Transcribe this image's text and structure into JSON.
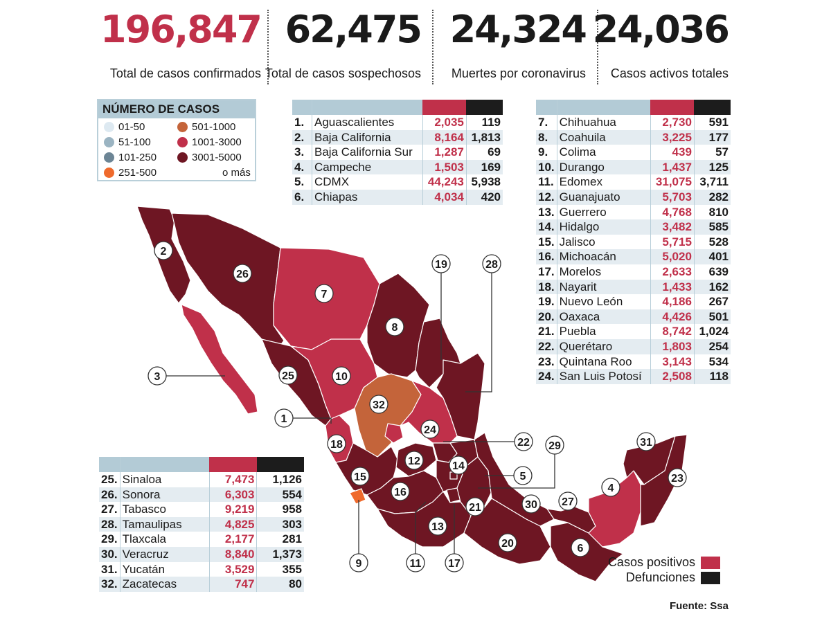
{
  "stats": [
    {
      "value": "196,847",
      "label": "Total de casos confirmados",
      "color": "#c0304a"
    },
    {
      "value": "62,475",
      "label": "Total de casos sospechosos",
      "color": "#1a1a1a"
    },
    {
      "value": "24,324",
      "label": "Muertes por coronavirus",
      "color": "#1a1a1a"
    },
    {
      "value": "24,036",
      "label": "Casos activos totales",
      "color": "#1a1a1a"
    }
  ],
  "legend": {
    "title": "NÚMERO DE CASOS",
    "items": [
      {
        "label": "01-50",
        "color": "#dde9f1"
      },
      {
        "label": "51-100",
        "color": "#9bb4c2"
      },
      {
        "label": "101-250",
        "color": "#6c8595"
      },
      {
        "label": "251-500",
        "color": "#ef6a2c"
      },
      {
        "label": "501-1000",
        "color": "#c4643a"
      },
      {
        "label": "1001-3000",
        "color": "#c0304a"
      },
      {
        "label": "3001-5000",
        "color": "#6e1623"
      }
    ],
    "more": "o más"
  },
  "tables": {
    "t1": [
      {
        "n": "1.",
        "state": "Aguascalientes",
        "cases": "2,035",
        "deaths": "119"
      },
      {
        "n": "2.",
        "state": "Baja California",
        "cases": "8,164",
        "deaths": "1,813"
      },
      {
        "n": "3.",
        "state": "Baja California Sur",
        "cases": "1,287",
        "deaths": "69"
      },
      {
        "n": "4.",
        "state": "Campeche",
        "cases": "1,503",
        "deaths": "169"
      },
      {
        "n": "5.",
        "state": "CDMX",
        "cases": "44,243",
        "deaths": "5,938"
      },
      {
        "n": "6.",
        "state": "Chiapas",
        "cases": "4,034",
        "deaths": "420"
      }
    ],
    "t2": [
      {
        "n": "7.",
        "state": "Chihuahua",
        "cases": "2,730",
        "deaths": "591"
      },
      {
        "n": "8.",
        "state": "Coahuila",
        "cases": "3,225",
        "deaths": "177"
      },
      {
        "n": "9.",
        "state": "Colima",
        "cases": "439",
        "deaths": "57"
      },
      {
        "n": "10.",
        "state": "Durango",
        "cases": "1,437",
        "deaths": "125"
      },
      {
        "n": "11.",
        "state": "Edomex",
        "cases": "31,075",
        "deaths": "3,711"
      },
      {
        "n": "12.",
        "state": "Guanajuato",
        "cases": "5,703",
        "deaths": "282"
      },
      {
        "n": "13.",
        "state": "Guerrero",
        "cases": "4,768",
        "deaths": "810"
      },
      {
        "n": "14.",
        "state": "Hidalgo",
        "cases": "3,482",
        "deaths": "585"
      },
      {
        "n": "15.",
        "state": "Jalisco",
        "cases": "5,715",
        "deaths": "528"
      },
      {
        "n": "16.",
        "state": "Michoacán",
        "cases": "5,020",
        "deaths": "401"
      },
      {
        "n": "17.",
        "state": "Morelos",
        "cases": "2,633",
        "deaths": "639"
      },
      {
        "n": "18.",
        "state": "Nayarit",
        "cases": "1,433",
        "deaths": "162"
      },
      {
        "n": "19.",
        "state": "Nuevo León",
        "cases": "4,186",
        "deaths": "267"
      },
      {
        "n": "20.",
        "state": "Oaxaca",
        "cases": "4,426",
        "deaths": "501"
      },
      {
        "n": "21.",
        "state": "Puebla",
        "cases": "8,742",
        "deaths": "1,024"
      },
      {
        "n": "22.",
        "state": "Querétaro",
        "cases": "1,803",
        "deaths": "254"
      },
      {
        "n": "23.",
        "state": "Quintana Roo",
        "cases": "3,143",
        "deaths": "534"
      },
      {
        "n": "24.",
        "state": "San Luis Potosí",
        "cases": "2,508",
        "deaths": "118"
      }
    ],
    "t3": [
      {
        "n": "25.",
        "state": "Sinaloa",
        "cases": "7,473",
        "deaths": "1,126"
      },
      {
        "n": "26.",
        "state": "Sonora",
        "cases": "6,303",
        "deaths": "554"
      },
      {
        "n": "27.",
        "state": "Tabasco",
        "cases": "9,219",
        "deaths": "958"
      },
      {
        "n": "28.",
        "state": "Tamaulipas",
        "cases": "4,825",
        "deaths": "303"
      },
      {
        "n": "29.",
        "state": "Tlaxcala",
        "cases": "2,177",
        "deaths": "281"
      },
      {
        "n": "30.",
        "state": "Veracruz",
        "cases": "8,840",
        "deaths": "1,373"
      },
      {
        "n": "31.",
        "state": "Yucatán",
        "cases": "3,529",
        "deaths": "355"
      },
      {
        "n": "32.",
        "state": "Zacatecas",
        "cases": "747",
        "deaths": "80"
      }
    ]
  },
  "map": {
    "colors": {
      "dark": "#6e1623",
      "red": "#c0304a",
      "brown": "#c4643a",
      "orange": "#ef6a2c"
    },
    "labels": [
      "1",
      "2",
      "3",
      "4",
      "5",
      "6",
      "7",
      "8",
      "9",
      "10",
      "11",
      "12",
      "13",
      "14",
      "15",
      "16",
      "17",
      "18",
      "19",
      "20",
      "21",
      "22",
      "23",
      "24",
      "25",
      "26",
      "27",
      "28",
      "29",
      "30",
      "31",
      "32"
    ]
  },
  "key": {
    "positives": "Casos positivos",
    "deaths": "Defunciones",
    "positives_color": "#c0304a",
    "deaths_color": "#1c1c1c"
  },
  "source": "Fuente: Ssa"
}
